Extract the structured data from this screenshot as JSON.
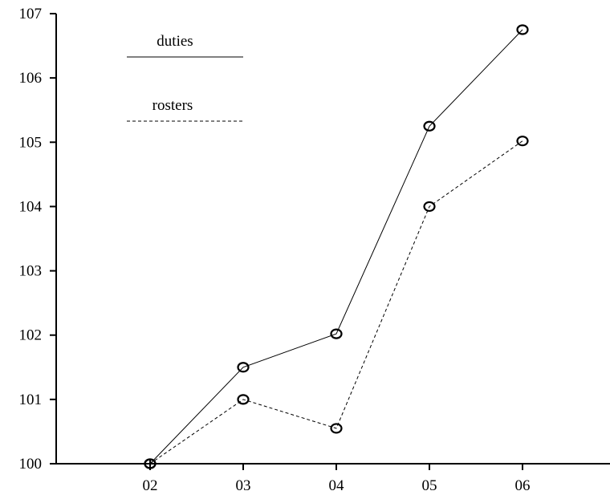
{
  "chart_data": {
    "type": "line",
    "categories": [
      "02",
      "03",
      "04",
      "05",
      "06"
    ],
    "y_ticks": [
      "100",
      "101",
      "102",
      "103",
      "104",
      "105",
      "106",
      "107"
    ],
    "ylim": [
      100,
      107
    ],
    "grid": false,
    "legend_position": "top-left",
    "series": [
      {
        "name": "duties",
        "line_style": "solid",
        "values": [
          100.0,
          101.5,
          102.02,
          105.25,
          106.75
        ]
      },
      {
        "name": "rosters",
        "line_style": "dashed",
        "values": [
          100.0,
          101.0,
          100.55,
          104.0,
          105.02
        ]
      }
    ]
  }
}
